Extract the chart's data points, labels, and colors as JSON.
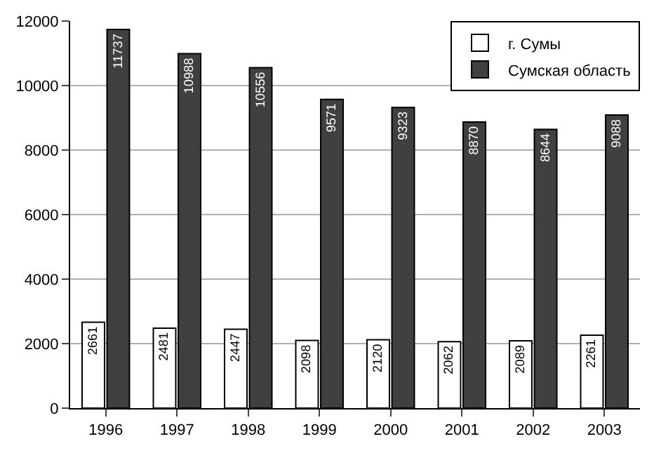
{
  "chart_data": {
    "type": "bar",
    "categories": [
      "1996",
      "1997",
      "1998",
      "1999",
      "2000",
      "2001",
      "2002",
      "2003"
    ],
    "series": [
      {
        "name": "г. Сумы",
        "color": "#ffffff",
        "values": [
          2661,
          2481,
          2447,
          2098,
          2120,
          2062,
          2089,
          2261
        ]
      },
      {
        "name": "Сумская область",
        "color": "#404040",
        "values": [
          11737,
          10988,
          10556,
          9571,
          9323,
          8870,
          8644,
          9088
        ]
      }
    ],
    "ylim": [
      0,
      12000
    ],
    "yticks": [
      0,
      2000,
      4000,
      6000,
      8000,
      10000,
      12000
    ],
    "grid": "y",
    "legend": "top right",
    "data_labels": true
  }
}
